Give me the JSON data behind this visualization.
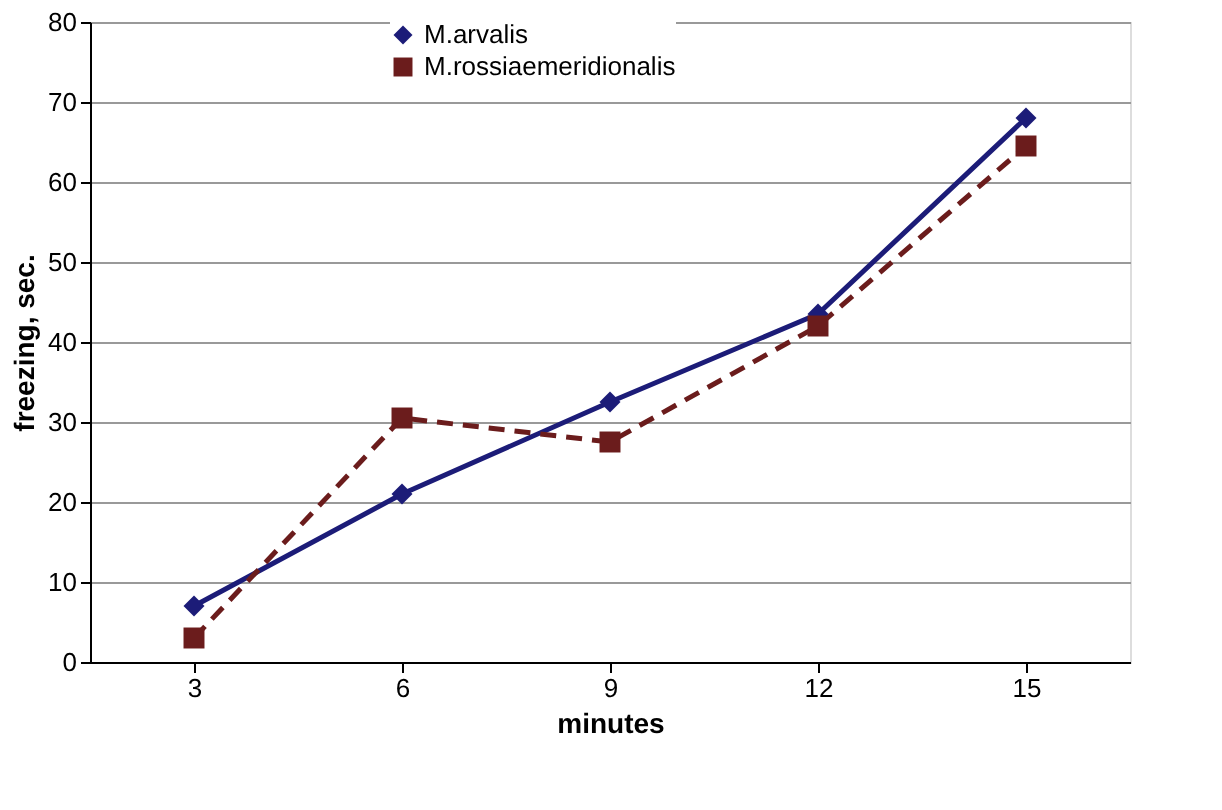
{
  "chart_data": {
    "type": "line",
    "xlabel": "minutes",
    "ylabel": "freezing, sec.",
    "categories": [
      "3",
      "6",
      "9",
      "12",
      "15"
    ],
    "series": [
      {
        "name": "M.arvalis",
        "color": "#1c1c78",
        "marker": "diamond",
        "line_style": "solid",
        "values": [
          7,
          21,
          32.5,
          43.5,
          68
        ]
      },
      {
        "name": "M.rossiaemeridionalis",
        "color": "#6b1c1c",
        "marker": "square",
        "line_style": "dashed",
        "values": [
          3,
          30.5,
          27.5,
          42,
          64.5
        ]
      }
    ],
    "ylim": [
      0,
      80
    ],
    "yticks": [
      0,
      10,
      20,
      30,
      40,
      50,
      60,
      70,
      80
    ],
    "grid": "y",
    "legend": "top"
  }
}
